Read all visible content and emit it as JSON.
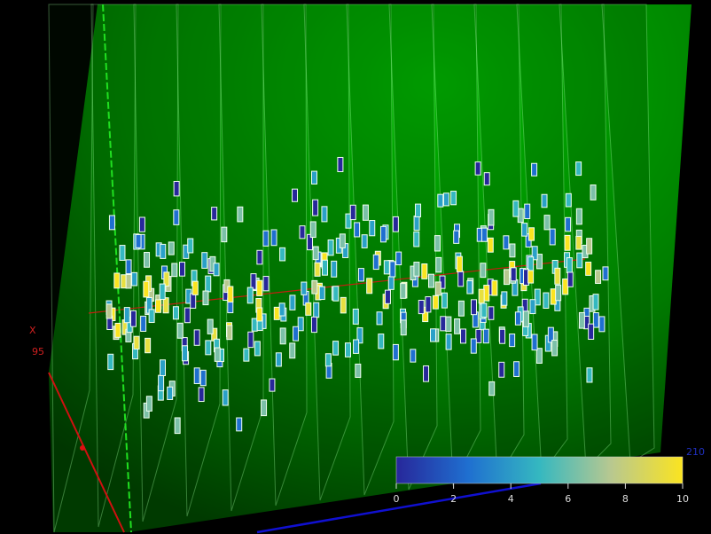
{
  "view": {
    "axis_label": "X",
    "x_value_label": "95",
    "z_value_label": "210"
  },
  "colorbar": {
    "lim": [
      0,
      10
    ],
    "ticks": [
      0,
      2,
      4,
      6,
      8,
      10
    ]
  }
}
